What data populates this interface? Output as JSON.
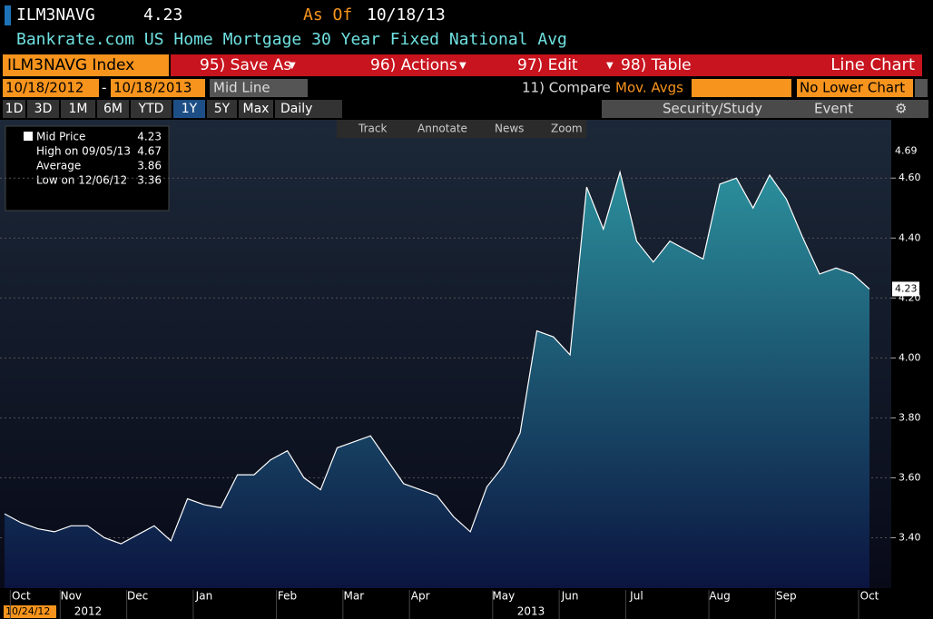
{
  "header": {
    "ticker": "ILM3NAVG",
    "price": "4.23",
    "as_of_label": "As Of",
    "as_of_date": "10/18/13",
    "subtitle": "Bankrate.com US Home Mortgage 30 Year Fixed National Avg"
  },
  "toolbar": {
    "security": "ILM3NAVG Index",
    "buttons": [
      "95) Save As",
      "96) Actions",
      "97) Edit",
      "98) Table"
    ],
    "chart_kind": "Line Chart"
  },
  "range_bar": {
    "start": "10/18/2012",
    "end": "10/18/2013",
    "mode": "Mid Line",
    "compare": "11) Compare",
    "mov_avgs": "Mov. Avgs",
    "lower_chart": "No Lower Chart"
  },
  "period_bar": {
    "periods": [
      "1D",
      "3D",
      "1M",
      "6M",
      "YTD",
      "1Y",
      "5Y",
      "Max"
    ],
    "active": "1Y",
    "frequency": "Daily",
    "study": "Security/Study",
    "event": "Event"
  },
  "chart_tools": [
    "Track",
    "Annotate",
    "News",
    "Zoom"
  ],
  "legend_box": {
    "rows": [
      [
        "Mid Price",
        "4.23"
      ],
      [
        "High on 09/05/13",
        "4.67"
      ],
      [
        "Average",
        "3.86"
      ],
      [
        "Low on 12/06/12",
        "3.36"
      ]
    ]
  },
  "chart_data": {
    "type": "area",
    "categories": [
      null,
      "Oct",
      null,
      null,
      "Nov",
      null,
      null,
      null,
      "Dec",
      null,
      null,
      null,
      "Jan",
      null,
      null,
      null,
      null,
      "Feb",
      null,
      null,
      null,
      "Mar",
      null,
      null,
      null,
      "Apr",
      null,
      null,
      null,
      null,
      "May",
      null,
      null,
      null,
      "Jun",
      null,
      null,
      null,
      "Jul",
      null,
      null,
      null,
      null,
      "Aug",
      null,
      null,
      null,
      "Sep",
      null,
      null,
      null,
      null,
      "Oct"
    ],
    "values": [
      3.48,
      3.45,
      3.43,
      3.42,
      3.44,
      3.44,
      3.4,
      3.38,
      3.41,
      3.44,
      3.39,
      3.53,
      3.51,
      3.5,
      3.61,
      3.61,
      3.66,
      3.69,
      3.6,
      3.56,
      3.7,
      3.72,
      3.74,
      3.66,
      3.58,
      3.56,
      3.54,
      3.47,
      3.42,
      3.57,
      3.64,
      3.75,
      4.09,
      4.07,
      4.01,
      4.57,
      4.43,
      4.62,
      4.39,
      4.32,
      4.39,
      4.36,
      4.33,
      4.58,
      4.6,
      4.5,
      4.61,
      4.53,
      4.4,
      4.28,
      4.3,
      4.28,
      4.23
    ],
    "ylim": [
      3.25,
      4.74
    ],
    "yticks": [
      {
        "value": 3.4,
        "label": "3.40"
      },
      {
        "value": 3.6,
        "label": "3.60"
      },
      {
        "value": 3.8,
        "label": "3.80"
      },
      {
        "value": 4.0,
        "label": "4.00"
      },
      {
        "value": 4.2,
        "label": "4.20"
      },
      {
        "value": 4.4,
        "label": "4.40"
      },
      {
        "value": 4.6,
        "label": "4.60"
      }
    ],
    "grid": true,
    "line_color": "#ffffff",
    "fill_top": "#2b8f9c",
    "fill_bottom": "#0b1440",
    "markers": [
      {
        "value": 4.69,
        "label": "4.69"
      },
      {
        "value": 4.23,
        "label": "4.23"
      }
    ],
    "start_label": "10/24/12",
    "years": [
      "2012",
      "2013"
    ]
  }
}
